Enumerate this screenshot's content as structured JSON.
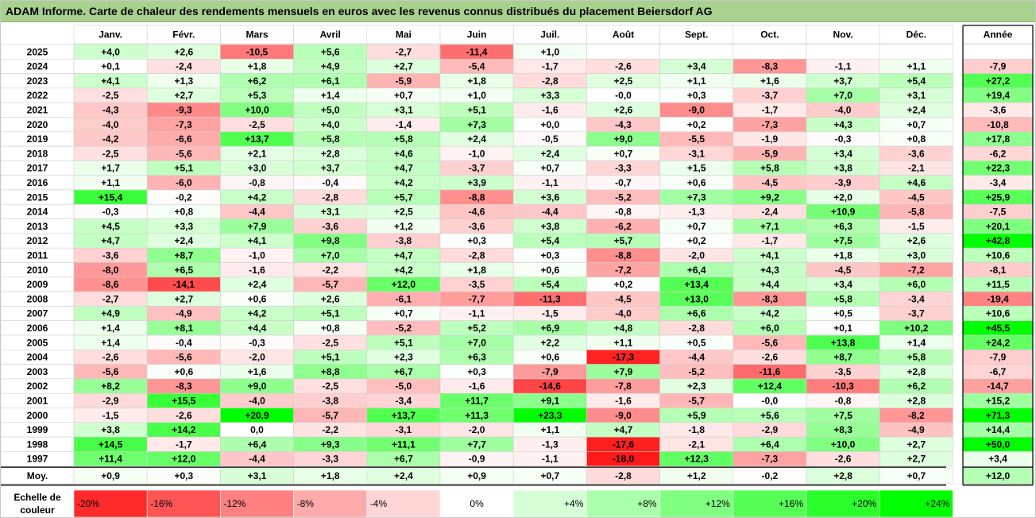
{
  "title": "ADAM Informe. Carte de chaleur des rendements mensuels en euros avec les revenus connus distribués du placement Beiersdorf AG",
  "chart_data": {
    "type": "heatmap",
    "months": [
      "Janv.",
      "Févr.",
      "Mars",
      "Avril",
      "Mai",
      "Juin",
      "Juil.",
      "Août",
      "Sept.",
      "Oct.",
      "Nov.",
      "Déc."
    ],
    "year_header": "Année",
    "rows": [
      {
        "label": "2025",
        "values": [
          "+4,0",
          "+2,6",
          "-10,5",
          "+5,6",
          "-2,7",
          "-11,4",
          "+1,0",
          "",
          "",
          "",
          "",
          ""
        ],
        "year": ""
      },
      {
        "label": "2024",
        "values": [
          "+0,1",
          "-2,4",
          "+1,8",
          "+4,9",
          "+2,7",
          "-5,4",
          "-1,7",
          "-2,6",
          "+3,4",
          "-8,3",
          "-1,1",
          "+1,1"
        ],
        "year": "-7,9"
      },
      {
        "label": "2023",
        "values": [
          "+4,1",
          "+1,3",
          "+6,2",
          "+6,1",
          "-5,9",
          "+1,8",
          "-2,8",
          "+2,5",
          "+1,1",
          "+1,6",
          "+3,7",
          "+5,4"
        ],
        "year": "+27,2"
      },
      {
        "label": "2022",
        "values": [
          "-2,5",
          "+2,7",
          "+5,3",
          "+1,4",
          "+0,7",
          "+1,0",
          "+3,3",
          "-0,0",
          "+0,3",
          "-3,7",
          "+7,0",
          "+3,1"
        ],
        "year": "+19,4"
      },
      {
        "label": "2021",
        "values": [
          "-4,3",
          "-9,3",
          "+10,0",
          "+5,0",
          "+3,1",
          "+5,1",
          "-1,6",
          "+2,6",
          "-9,0",
          "-1,7",
          "-4,0",
          "+2,4"
        ],
        "year": "-3,6"
      },
      {
        "label": "2020",
        "values": [
          "-4,0",
          "-7,3",
          "-2,5",
          "+4,0",
          "-1,4",
          "+7,3",
          "+0,0",
          "-4,3",
          "+0,2",
          "-7,3",
          "+4,3",
          "+0,7"
        ],
        "year": "-10,8"
      },
      {
        "label": "2019",
        "values": [
          "-4,2",
          "-6,6",
          "+13,7",
          "+5,8",
          "+5,8",
          "+2,4",
          "-0,5",
          "+9,0",
          "-5,5",
          "-1,9",
          "-0,3",
          "+0,8"
        ],
        "year": "+17,8"
      },
      {
        "label": "2018",
        "values": [
          "-2,5",
          "-5,6",
          "+2,1",
          "+2,8",
          "+4,6",
          "-1,0",
          "+2,4",
          "+0,7",
          "-3,1",
          "-5,9",
          "+3,4",
          "-3,6"
        ],
        "year": "-6,2"
      },
      {
        "label": "2017",
        "values": [
          "+1,7",
          "+5,1",
          "+3,0",
          "+3,7",
          "+4,7",
          "-3,7",
          "+0,7",
          "-3,3",
          "+1,5",
          "+5,8",
          "+3,8",
          "-2,1"
        ],
        "year": "+22,3"
      },
      {
        "label": "2016",
        "values": [
          "+1,1",
          "-6,0",
          "-0,8",
          "-0,4",
          "+4,2",
          "+3,9",
          "-1,1",
          "-0,7",
          "+0,6",
          "-4,5",
          "-3,9",
          "+4,6"
        ],
        "year": "-3,4"
      },
      {
        "label": "2015",
        "values": [
          "+15,4",
          "-0,2",
          "+4,2",
          "-2,8",
          "+5,7",
          "-8,8",
          "+3,6",
          "-5,2",
          "+7,3",
          "+9,2",
          "+2,0",
          "-4,5"
        ],
        "year": "+25,9"
      },
      {
        "label": "2014",
        "values": [
          "-0,3",
          "+0,8",
          "-4,4",
          "+3,1",
          "+2,5",
          "-4,6",
          "-4,4",
          "-0,8",
          "-1,3",
          "-2,4",
          "+10,9",
          "-5,8"
        ],
        "year": "-7,5"
      },
      {
        "label": "2013",
        "values": [
          "+4,5",
          "+3,3",
          "+7,9",
          "-3,6",
          "+1,2",
          "-3,6",
          "+3,8",
          "-6,2",
          "+0,7",
          "+7,1",
          "+6,3",
          "-1,5"
        ],
        "year": "+20,1"
      },
      {
        "label": "2012",
        "values": [
          "+4,7",
          "+2,4",
          "+4,1",
          "+9,8",
          "-3,8",
          "+0,3",
          "+5,4",
          "+5,7",
          "+0,2",
          "-1,7",
          "+7,5",
          "+2,6"
        ],
        "year": "+42,8"
      },
      {
        "label": "2011",
        "values": [
          "-3,6",
          "+8,7",
          "-1,0",
          "+7,0",
          "+4,7",
          "-2,8",
          "+0,3",
          "-8,8",
          "-2,0",
          "+4,1",
          "+1,8",
          "+3,0"
        ],
        "year": "+10,6"
      },
      {
        "label": "2010",
        "values": [
          "-8,0",
          "+6,5",
          "-1,6",
          "-2,2",
          "+4,2",
          "+1,8",
          "+0,6",
          "-7,2",
          "+6,4",
          "+4,3",
          "-4,5",
          "-7,2"
        ],
        "year": "-8,1"
      },
      {
        "label": "2009",
        "values": [
          "-8,6",
          "-14,1",
          "+2,4",
          "-5,7",
          "+12,0",
          "-3,5",
          "+5,4",
          "+0,2",
          "+13,4",
          "+4,4",
          "+3,4",
          "+6,0"
        ],
        "year": "+11,5"
      },
      {
        "label": "2008",
        "values": [
          "-2,7",
          "+2,7",
          "+0,6",
          "+2,6",
          "-6,1",
          "-7,7",
          "-11,3",
          "-4,5",
          "+13,0",
          "-8,3",
          "+5,8",
          "-3,4"
        ],
        "year": "-19,4"
      },
      {
        "label": "2007",
        "values": [
          "+4,9",
          "-4,9",
          "+4,2",
          "+5,1",
          "+0,7",
          "-1,1",
          "-1,5",
          "-4,0",
          "+6,6",
          "+4,2",
          "+0,5",
          "-3,7"
        ],
        "year": "+10,6"
      },
      {
        "label": "2006",
        "values": [
          "+1,4",
          "+8,1",
          "+4,4",
          "+0,8",
          "-5,2",
          "+5,2",
          "+6,9",
          "+4,8",
          "-2,8",
          "+6,0",
          "+0,1",
          "+10,2"
        ],
        "year": "+45,5"
      },
      {
        "label": "2005",
        "values": [
          "+1,4",
          "-0,4",
          "-0,3",
          "-2,5",
          "+5,1",
          "+7,0",
          "+2,2",
          "+1,1",
          "+0,5",
          "-5,6",
          "+13,8",
          "+1,4"
        ],
        "year": "+24,2"
      },
      {
        "label": "2004",
        "values": [
          "-2,6",
          "-5,6",
          "-2,0",
          "+5,1",
          "+2,3",
          "+6,3",
          "+0,6",
          "-17,3",
          "-4,4",
          "-2,6",
          "+8,7",
          "+5,8"
        ],
        "year": "-7,9"
      },
      {
        "label": "2003",
        "values": [
          "-5,6",
          "+0,6",
          "+1,6",
          "+8,8",
          "+6,7",
          "+0,3",
          "-7,9",
          "+7,9",
          "-5,2",
          "-11,6",
          "-3,5",
          "+2,8"
        ],
        "year": "-6,7"
      },
      {
        "label": "2002",
        "values": [
          "+8,2",
          "-8,3",
          "+9,0",
          "-2,5",
          "-5,0",
          "-1,6",
          "-14,6",
          "-7,8",
          "+2,3",
          "+12,4",
          "-10,3",
          "+6,2"
        ],
        "year": "-14,7"
      },
      {
        "label": "2001",
        "values": [
          "-2,9",
          "+15,5",
          "-4,0",
          "-3,8",
          "-3,4",
          "+11,7",
          "+9,1",
          "-1,6",
          "-5,7",
          "-0,0",
          "-0,8",
          "+2,8"
        ],
        "year": "+15,2"
      },
      {
        "label": "2000",
        "values": [
          "-1,5",
          "-2,6",
          "+20,9",
          "-5,7",
          "+13,7",
          "+11,3",
          "+23,3",
          "-9,0",
          "+5,9",
          "+5,6",
          "+7,5",
          "-8,2"
        ],
        "year": "+71,3"
      },
      {
        "label": "1999",
        "values": [
          "+3,8",
          "+14,2",
          "0,0",
          "-2,2",
          "-3,1",
          "-2,0",
          "+1,1",
          "+4,7",
          "-1,8",
          "-2,9",
          "+8,3",
          "-4,9"
        ],
        "year": "+14,4"
      },
      {
        "label": "1998",
        "values": [
          "+14,5",
          "-1,7",
          "+6,4",
          "+9,3",
          "+11,1",
          "+7,7",
          "-1,3",
          "-17,6",
          "-2,1",
          "+6,4",
          "+10,0",
          "+2,7"
        ],
        "year": "+50,0"
      },
      {
        "label": "1997",
        "values": [
          "+11,4",
          "+12,0",
          "-4,4",
          "-3,3",
          "+6,7",
          "-0,9",
          "-1,1",
          "-18,0",
          "+12,3",
          "-7,3",
          "-2,6",
          "+2,7"
        ],
        "year": "+3,4"
      }
    ],
    "average": {
      "label": "Moy.",
      "values": [
        "+0,9",
        "+0,3",
        "+3,1",
        "+1,8",
        "+2,4",
        "+0,9",
        "+0,7",
        "-2,8",
        "+1,2",
        "-0,2",
        "+2,8",
        "+0,7"
      ],
      "year": "+12,0"
    },
    "scale": {
      "label_line1": "Echelle de",
      "label_line2": "couleur",
      "steps": [
        {
          "text": "-20%",
          "value": -20
        },
        {
          "text": "-16%",
          "value": -16
        },
        {
          "text": "-12%",
          "value": -12
        },
        {
          "text": "-8%",
          "value": -8
        },
        {
          "text": "-4%",
          "value": -4
        },
        {
          "text": "0%",
          "value": 0
        },
        {
          "text": "+4%",
          "value": 4
        },
        {
          "text": "+8%",
          "value": 8
        },
        {
          "text": "+12%",
          "value": 12
        },
        {
          "text": "+16%",
          "value": 16
        },
        {
          "text": "+20%",
          "value": 20
        },
        {
          "text": "+24%",
          "value": 24
        }
      ]
    },
    "colors": {
      "negative_max": "#ff0000",
      "neutral": "#ffffff",
      "positive_max": "#00ff00",
      "title_bg": "#a9d18e"
    }
  }
}
